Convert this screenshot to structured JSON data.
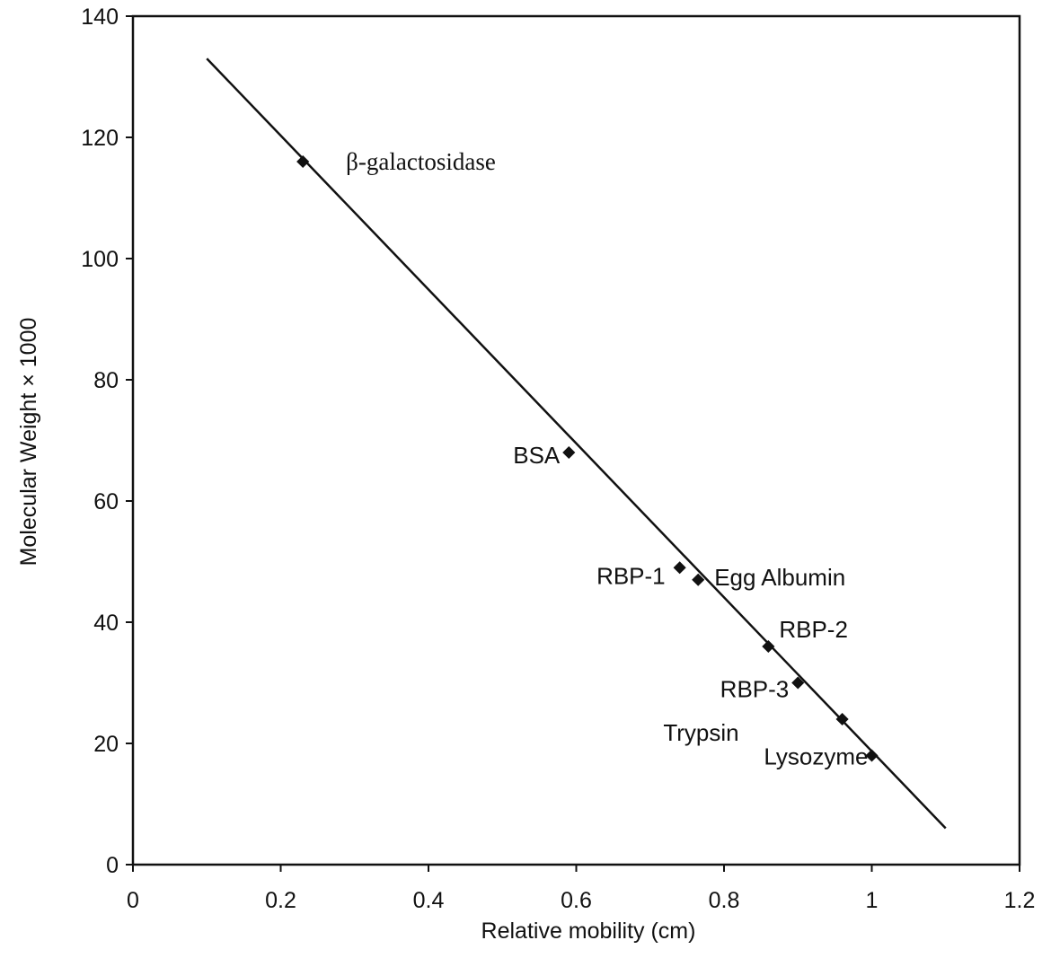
{
  "chart_data": {
    "type": "scatter",
    "title": "",
    "xlabel": "Relative mobility (cm)",
    "ylabel": "Molecular Weight × 1000",
    "xlim": [
      0,
      1.2
    ],
    "ylim": [
      0,
      140
    ],
    "xticks": [
      0,
      0.2,
      0.4,
      0.6,
      0.8,
      1,
      1.2
    ],
    "yticks": [
      0,
      20,
      40,
      60,
      80,
      100,
      120,
      140
    ],
    "xtick_labels": [
      "0",
      "0.2",
      "0.4",
      "0.6",
      "0.8",
      "1",
      "1.2"
    ],
    "ytick_labels": [
      "0",
      "20",
      "40",
      "60",
      "80",
      "100",
      "120",
      "140"
    ],
    "grid": false,
    "legend": "none",
    "marker": "diamond",
    "points": [
      {
        "label": "β-galactosidase",
        "x": 0.23,
        "y": 116
      },
      {
        "label": "BSA",
        "x": 0.59,
        "y": 68
      },
      {
        "label": "RBP-1",
        "x": 0.74,
        "y": 49
      },
      {
        "label": "Egg Albumin",
        "x": 0.765,
        "y": 47
      },
      {
        "label": "RBP-2",
        "x": 0.86,
        "y": 36
      },
      {
        "label": "RBP-3",
        "x": 0.9,
        "y": 30
      },
      {
        "label": "Trypsin",
        "x": 0.96,
        "y": 24
      },
      {
        "label": "Lysozyme",
        "x": 1.0,
        "y": 18
      }
    ],
    "fit_line": {
      "x": [
        0.1,
        1.1
      ],
      "y": [
        133,
        6
      ]
    }
  }
}
